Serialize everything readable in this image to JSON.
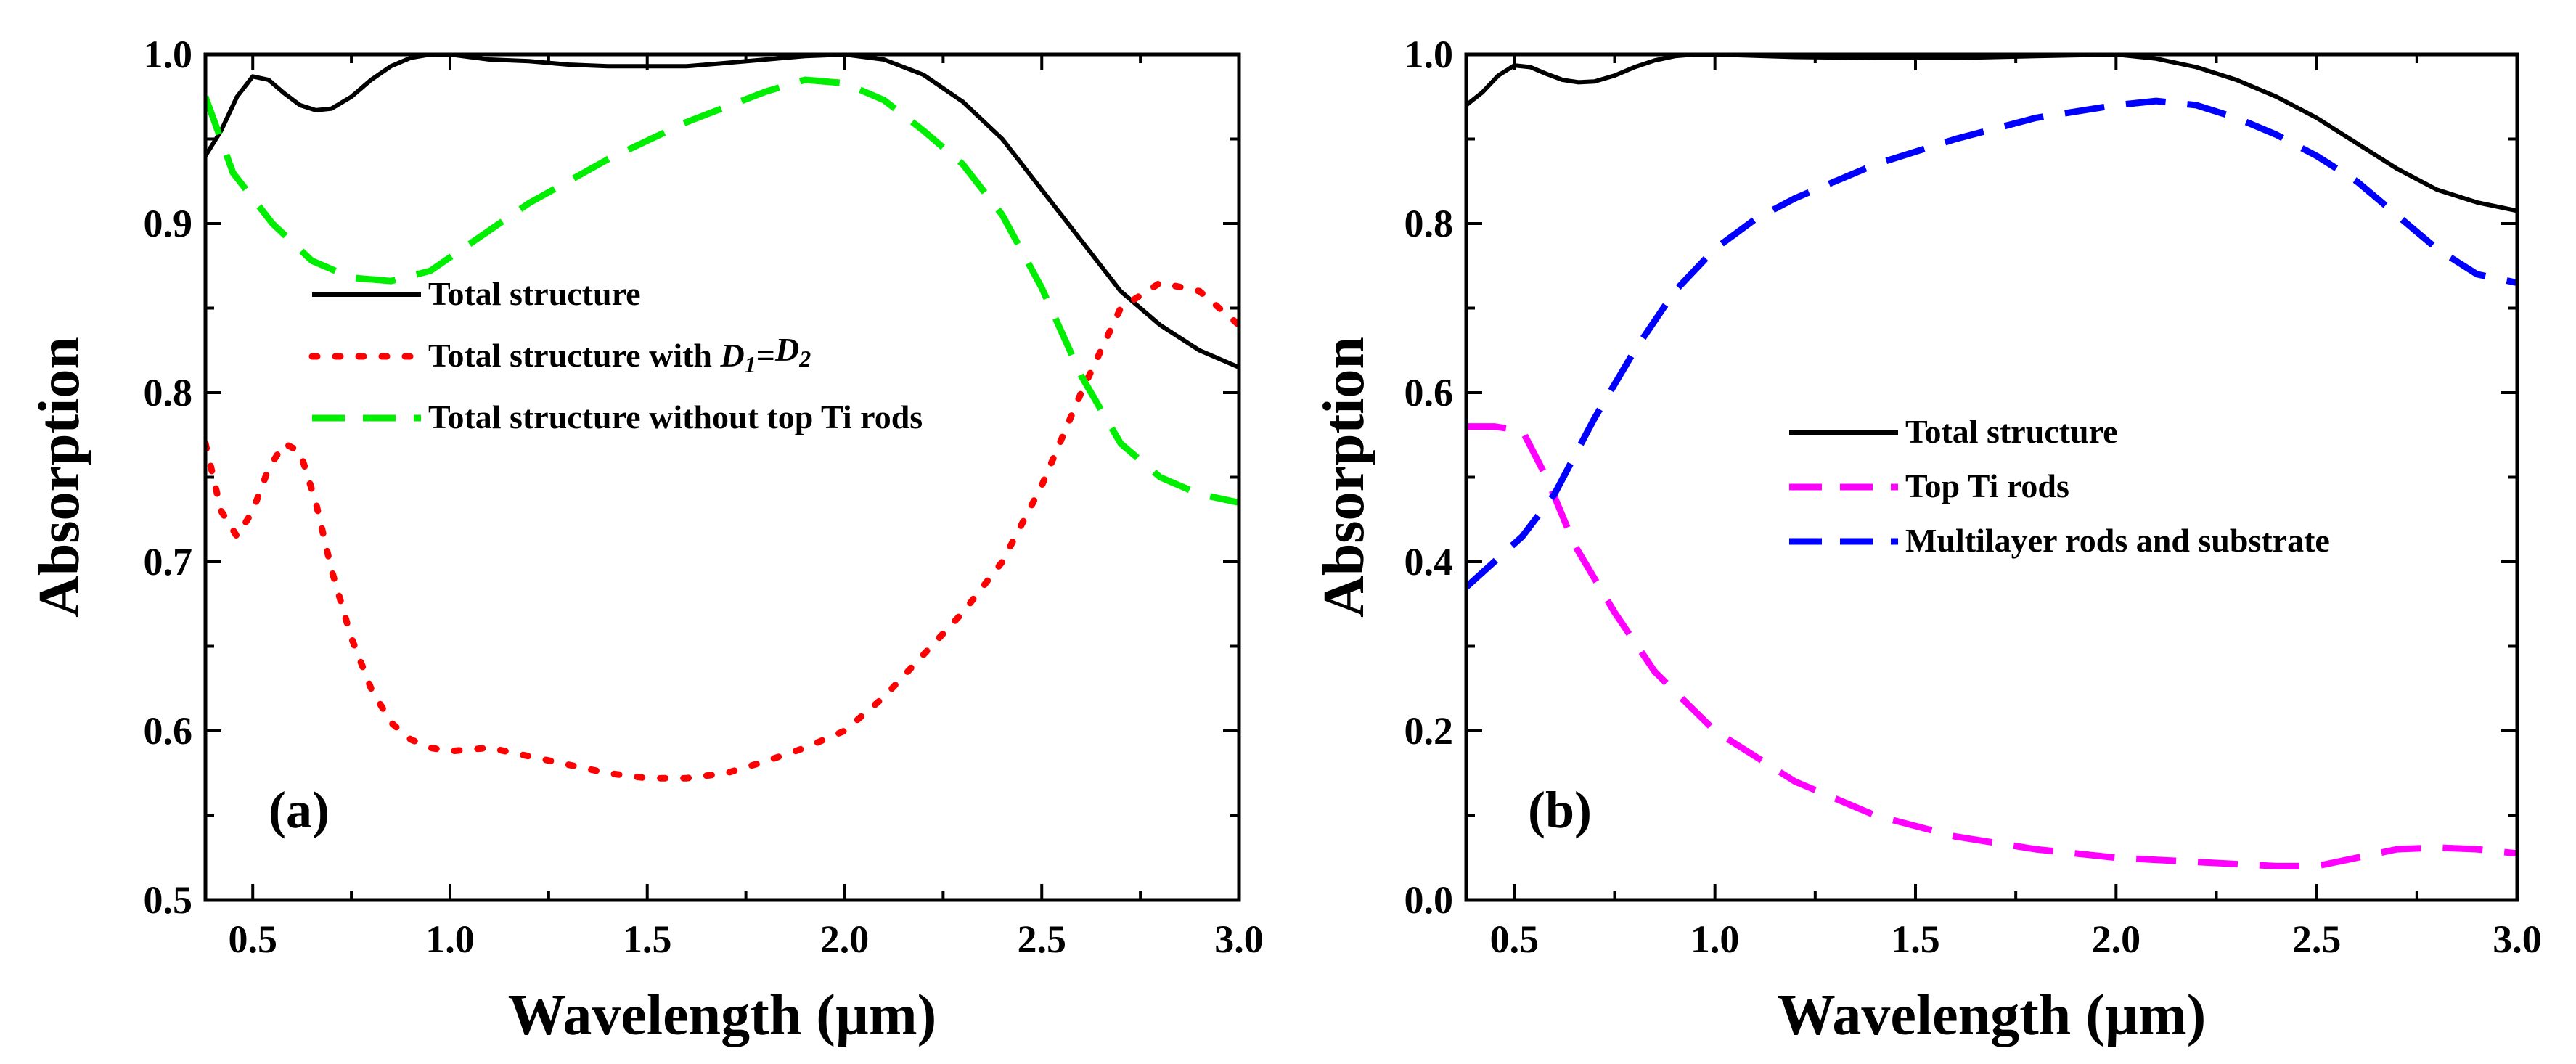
{
  "chart_data": [
    {
      "type": "line",
      "panel_label": "(a)",
      "xlabel": "Wavelength (µm)",
      "ylabel": "Absorption",
      "xlim": [
        0.38,
        3.0
      ],
      "ylim": [
        0.5,
        1.0
      ],
      "x_ticks": [
        "0.5",
        "1.0",
        "1.5",
        "2.0",
        "2.5",
        "3.0"
      ],
      "x_tick_values": [
        0.5,
        1.0,
        1.5,
        2.0,
        2.5,
        3.0
      ],
      "y_ticks": [
        "0.5",
        "0.6",
        "0.7",
        "0.8",
        "0.9",
        "1.0"
      ],
      "y_tick_values": [
        0.5,
        0.6,
        0.7,
        0.8,
        0.9,
        1.0
      ],
      "legend_position": "middle-left",
      "series": [
        {
          "name": "Total structure",
          "legend_parts": [
            "Total structure"
          ],
          "color": "#000000",
          "style": "solid",
          "x": [
            0.38,
            0.42,
            0.46,
            0.5,
            0.54,
            0.58,
            0.62,
            0.66,
            0.7,
            0.75,
            0.8,
            0.85,
            0.9,
            0.95,
            1.0,
            1.1,
            1.2,
            1.3,
            1.4,
            1.5,
            1.6,
            1.7,
            1.8,
            1.9,
            2.0,
            2.1,
            2.2,
            2.3,
            2.4,
            2.5,
            2.6,
            2.7,
            2.8,
            2.9,
            3.0
          ],
          "y": [
            0.94,
            0.955,
            0.975,
            0.987,
            0.985,
            0.977,
            0.97,
            0.967,
            0.968,
            0.975,
            0.985,
            0.993,
            0.998,
            1.0,
            1.0,
            0.997,
            0.996,
            0.994,
            0.993,
            0.993,
            0.993,
            0.995,
            0.997,
            0.999,
            1.0,
            0.997,
            0.988,
            0.972,
            0.95,
            0.92,
            0.89,
            0.86,
            0.84,
            0.825,
            0.815
          ]
        },
        {
          "name": "Total structure with D1=D2",
          "legend_parts": [
            "Total structure with ",
            "D",
            "1",
            "=",
            "D",
            "2"
          ],
          "color": "#ff0000",
          "style": "dotted",
          "x": [
            0.38,
            0.42,
            0.46,
            0.5,
            0.54,
            0.58,
            0.62,
            0.66,
            0.7,
            0.75,
            0.8,
            0.85,
            0.9,
            0.95,
            1.0,
            1.1,
            1.2,
            1.3,
            1.4,
            1.5,
            1.6,
            1.7,
            1.8,
            1.9,
            2.0,
            2.1,
            2.2,
            2.3,
            2.4,
            2.5,
            2.6,
            2.7,
            2.8,
            2.9,
            3.0
          ],
          "y": [
            0.77,
            0.73,
            0.715,
            0.73,
            0.755,
            0.77,
            0.765,
            0.735,
            0.695,
            0.655,
            0.625,
            0.605,
            0.595,
            0.59,
            0.588,
            0.59,
            0.585,
            0.58,
            0.575,
            0.572,
            0.572,
            0.575,
            0.582,
            0.59,
            0.6,
            0.62,
            0.645,
            0.67,
            0.7,
            0.745,
            0.8,
            0.85,
            0.865,
            0.86,
            0.84
          ]
        },
        {
          "name": "Total structure without top Ti rods",
          "legend_parts": [
            "Total structure without top Ti rods"
          ],
          "color": "#00ee00",
          "style": "dashed",
          "x": [
            0.38,
            0.45,
            0.55,
            0.65,
            0.75,
            0.85,
            0.95,
            1.05,
            1.2,
            1.4,
            1.6,
            1.8,
            1.9,
            2.0,
            2.1,
            2.2,
            2.3,
            2.4,
            2.5,
            2.6,
            2.7,
            2.8,
            2.9,
            3.0
          ],
          "y": [
            0.975,
            0.93,
            0.9,
            0.878,
            0.868,
            0.866,
            0.872,
            0.888,
            0.912,
            0.938,
            0.96,
            0.978,
            0.985,
            0.983,
            0.973,
            0.955,
            0.935,
            0.905,
            0.862,
            0.81,
            0.77,
            0.75,
            0.74,
            0.735
          ]
        }
      ]
    },
    {
      "type": "line",
      "panel_label": "(b)",
      "xlabel": "Wavelength (µm)",
      "ylabel": "Absorption",
      "xlim": [
        0.38,
        3.0
      ],
      "ylim": [
        0.0,
        1.0
      ],
      "x_ticks": [
        "0.5",
        "1.0",
        "1.5",
        "2.0",
        "2.5",
        "3.0"
      ],
      "x_tick_values": [
        0.5,
        1.0,
        1.5,
        2.0,
        2.5,
        3.0
      ],
      "y_ticks": [
        "0.0",
        "0.2",
        "0.4",
        "0.6",
        "0.8",
        "1.0"
      ],
      "y_tick_values": [
        0.0,
        0.2,
        0.4,
        0.6,
        0.8,
        1.0
      ],
      "legend_position": "middle-right",
      "series": [
        {
          "name": "Total structure",
          "legend_parts": [
            "Total structure"
          ],
          "color": "#000000",
          "style": "solid",
          "x": [
            0.38,
            0.42,
            0.46,
            0.5,
            0.54,
            0.58,
            0.62,
            0.66,
            0.7,
            0.75,
            0.8,
            0.85,
            0.9,
            0.95,
            1.0,
            1.2,
            1.4,
            1.6,
            1.8,
            2.0,
            2.1,
            2.2,
            2.3,
            2.4,
            2.5,
            2.6,
            2.7,
            2.8,
            2.9,
            3.0
          ],
          "y": [
            0.94,
            0.955,
            0.975,
            0.987,
            0.985,
            0.977,
            0.97,
            0.967,
            0.968,
            0.975,
            0.985,
            0.993,
            0.998,
            1.0,
            1.0,
            0.997,
            0.996,
            0.996,
            0.998,
            1.0,
            0.995,
            0.985,
            0.97,
            0.95,
            0.925,
            0.895,
            0.865,
            0.84,
            0.825,
            0.815
          ]
        },
        {
          "name": "Top Ti rods",
          "legend_parts": [
            "Top Ti rods"
          ],
          "color": "#ff00ff",
          "style": "dashed",
          "x": [
            0.38,
            0.45,
            0.52,
            0.58,
            0.65,
            0.75,
            0.85,
            1.0,
            1.2,
            1.4,
            1.6,
            1.8,
            2.0,
            2.2,
            2.4,
            2.5,
            2.6,
            2.7,
            2.8,
            2.9,
            3.0
          ],
          "y": [
            0.56,
            0.56,
            0.555,
            0.5,
            0.42,
            0.34,
            0.27,
            0.2,
            0.14,
            0.1,
            0.075,
            0.06,
            0.05,
            0.045,
            0.04,
            0.04,
            0.05,
            0.06,
            0.062,
            0.06,
            0.055
          ]
        },
        {
          "name": "Multilayer rods and substrate",
          "legend_parts": [
            "Multilayer rods and substrate"
          ],
          "color": "#0000ff",
          "style": "dashed",
          "x": [
            0.38,
            0.45,
            0.52,
            0.6,
            0.7,
            0.8,
            0.9,
            1.0,
            1.1,
            1.2,
            1.4,
            1.6,
            1.8,
            2.0,
            2.1,
            2.2,
            2.3,
            2.4,
            2.5,
            2.6,
            2.7,
            2.8,
            2.9,
            3.0
          ],
          "y": [
            0.37,
            0.4,
            0.43,
            0.48,
            0.57,
            0.65,
            0.72,
            0.77,
            0.805,
            0.83,
            0.87,
            0.9,
            0.925,
            0.94,
            0.945,
            0.94,
            0.925,
            0.905,
            0.88,
            0.85,
            0.81,
            0.77,
            0.74,
            0.73
          ]
        }
      ]
    }
  ]
}
